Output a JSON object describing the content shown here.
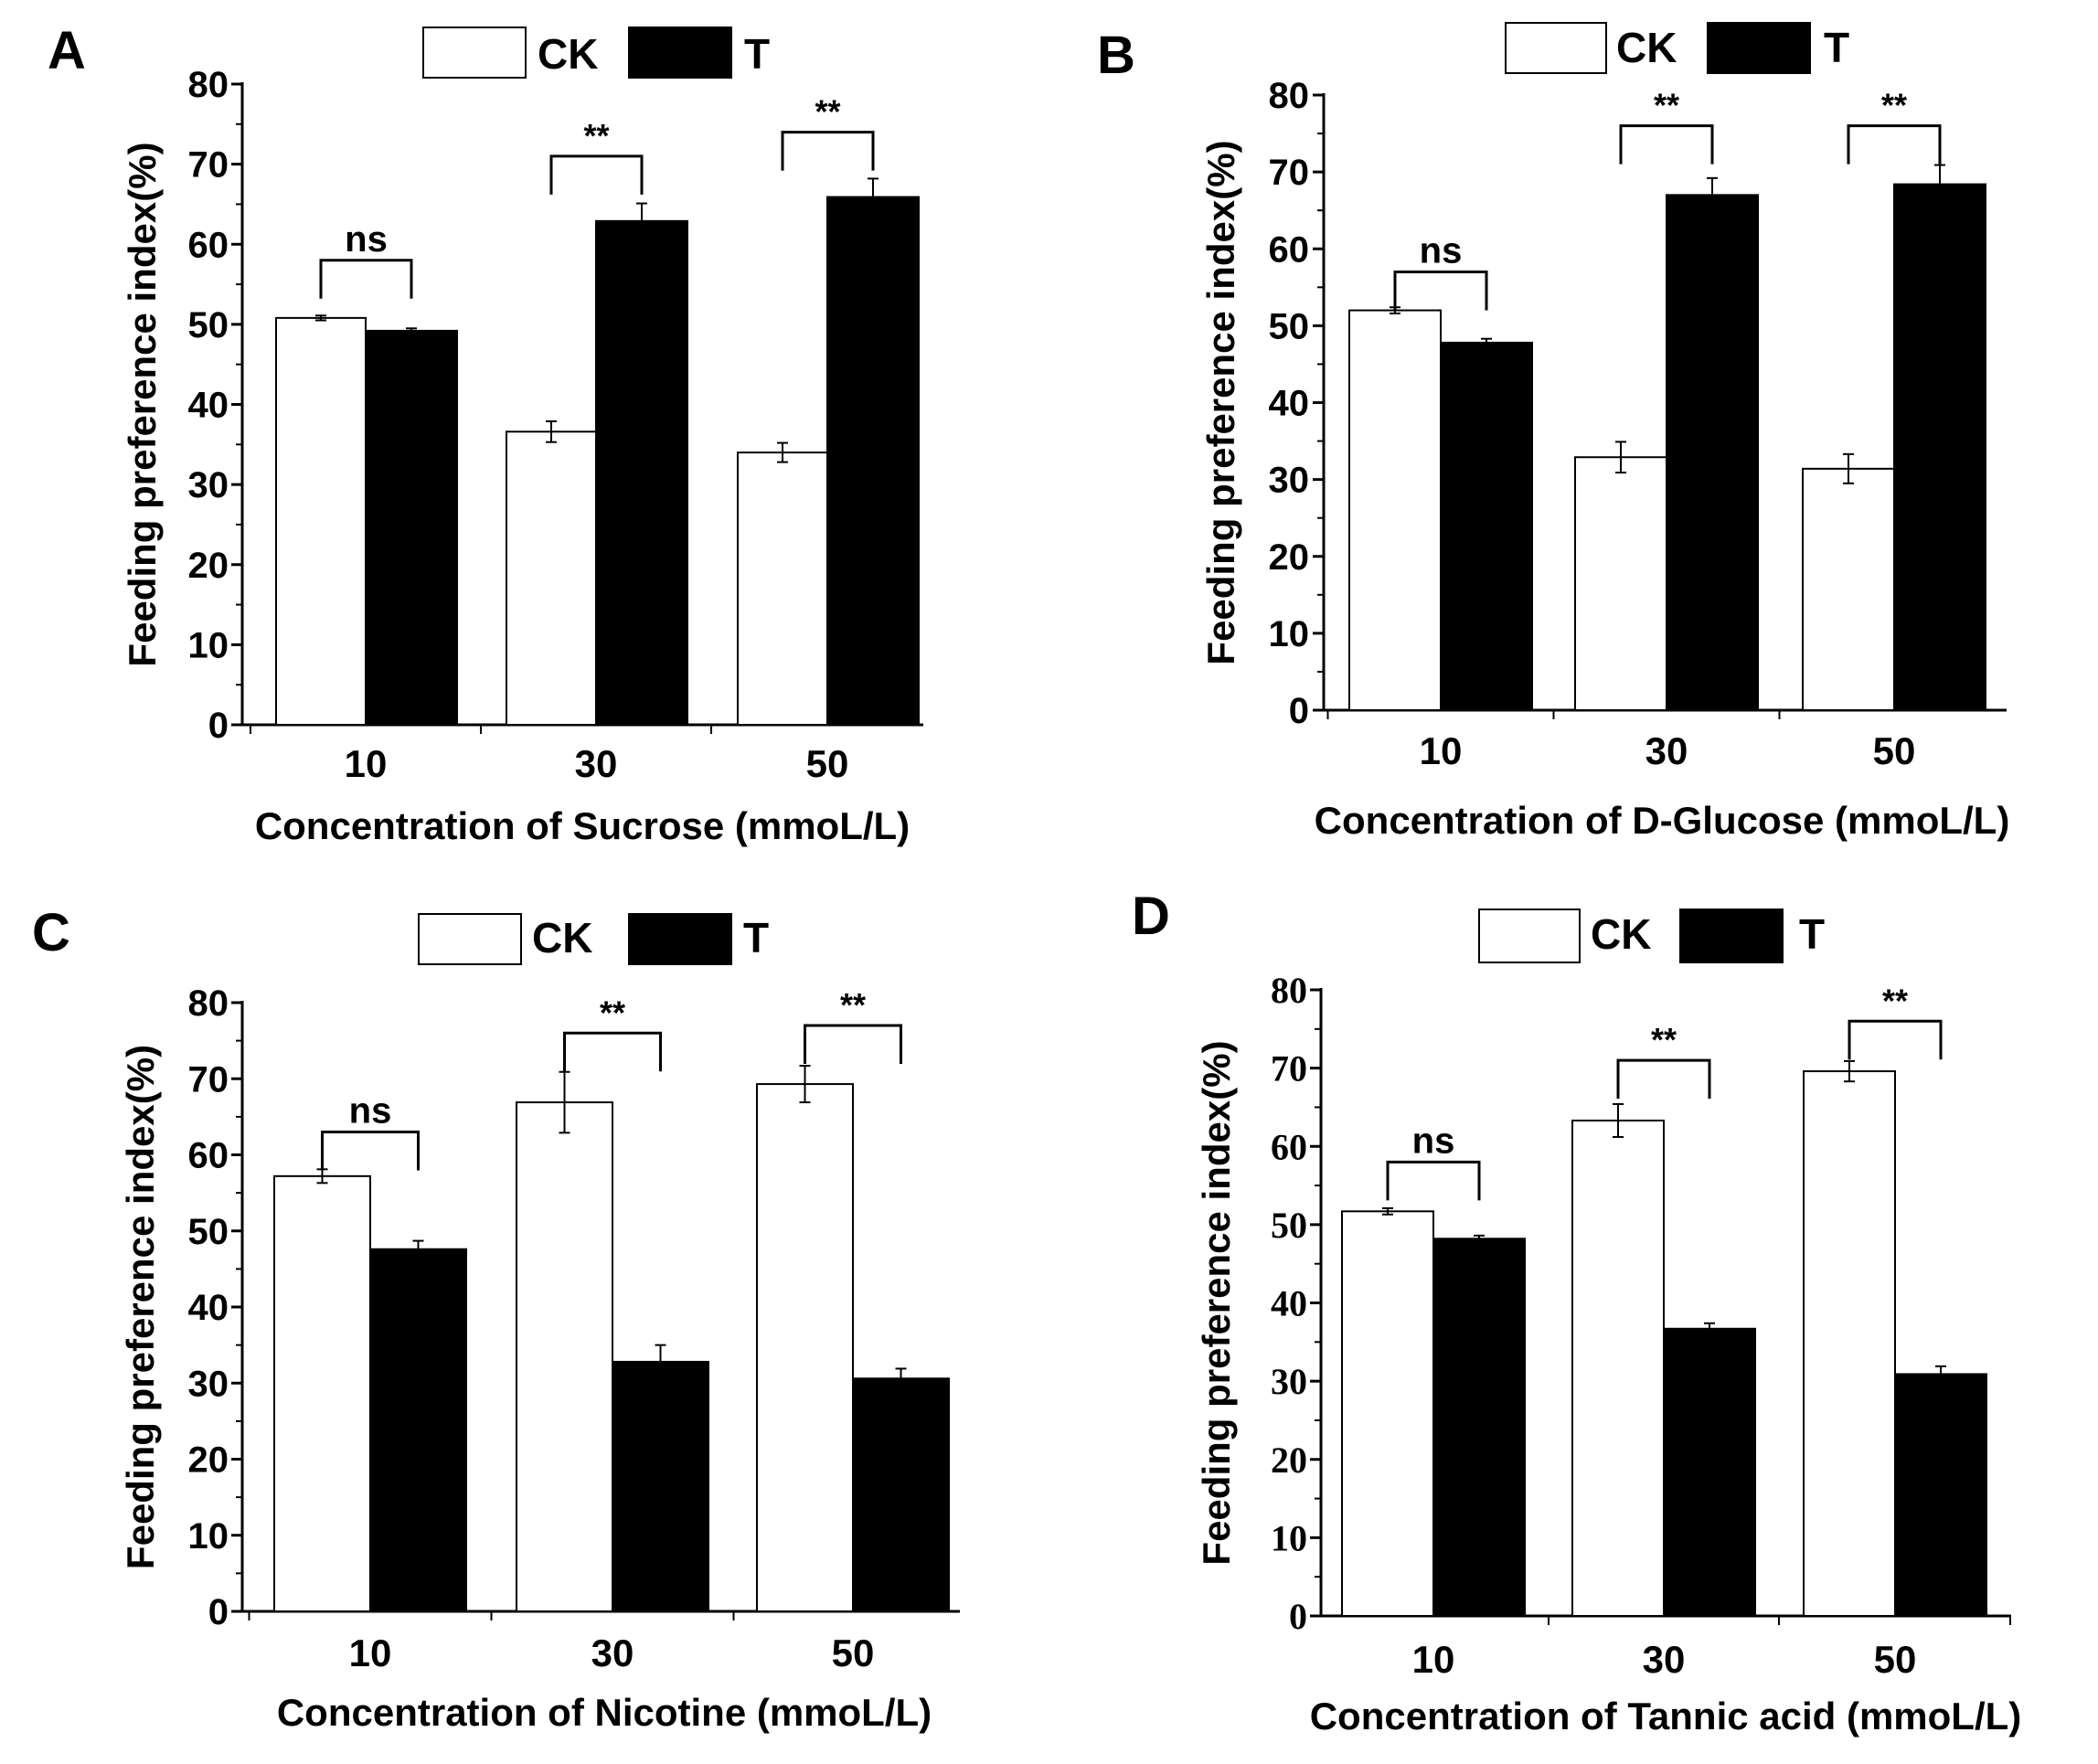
{
  "chart_data": [
    {
      "type": "bar",
      "panel_label": "A",
      "title": "",
      "xlabel": "Concentration of  Sucrose (mmoL/L)",
      "ylabel": "Feeding preference index(%)",
      "ylim": [
        0,
        80
      ],
      "yticks": [
        "0",
        "10",
        "20",
        "30",
        "40",
        "50",
        "60",
        "70",
        "80"
      ],
      "categories": [
        "10",
        "30",
        "50"
      ],
      "legend": [
        "CK",
        "T"
      ],
      "series": [
        {
          "name": "CK",
          "values": [
            50.8,
            36.6,
            34.0
          ],
          "errors": [
            0.3,
            1.3,
            1.2
          ]
        },
        {
          "name": "T",
          "values": [
            49.2,
            62.9,
            65.9
          ],
          "errors": [
            0.3,
            2.2,
            2.3
          ]
        }
      ],
      "significance": [
        "ns",
        "**",
        "**"
      ],
      "sig_heights": [
        58,
        71,
        74
      ]
    },
    {
      "type": "bar",
      "panel_label": "B",
      "title": "",
      "xlabel": "Concentration of  D-Glucose (mmoL/L)",
      "ylabel": "Feeding preference index(%)",
      "ylim": [
        0,
        80
      ],
      "yticks": [
        "0",
        "10",
        "20",
        "30",
        "40",
        "50",
        "60",
        "70",
        "80"
      ],
      "categories": [
        "10",
        "30",
        "50"
      ],
      "legend": [
        "CK",
        "T"
      ],
      "series": [
        {
          "name": "CK",
          "values": [
            52.0,
            32.9,
            31.4
          ],
          "errors": [
            0.4,
            2.0,
            1.9
          ]
        },
        {
          "name": "T",
          "values": [
            47.8,
            67.0,
            68.4
          ],
          "errors": [
            0.5,
            2.2,
            2.5
          ]
        }
      ],
      "significance": [
        "ns",
        "**",
        "**"
      ],
      "sig_heights": [
        57,
        76,
        76
      ]
    },
    {
      "type": "bar",
      "panel_label": "C",
      "title": "",
      "xlabel": "Concentration of Nicotine (mmoL/L)",
      "ylabel": "Feeding preference index(%)",
      "ylim": [
        0,
        80
      ],
      "yticks": [
        "0",
        "10",
        "20",
        "30",
        "40",
        "50",
        "60",
        "70",
        "80"
      ],
      "categories": [
        "10",
        "30",
        "50"
      ],
      "legend": [
        "CK",
        "T"
      ],
      "series": [
        {
          "name": "CK",
          "values": [
            57.2,
            66.9,
            69.3
          ],
          "errors": [
            0.9,
            4.0,
            2.4
          ]
        },
        {
          "name": "T",
          "values": [
            47.6,
            32.8,
            30.6
          ],
          "errors": [
            1.1,
            2.2,
            1.3
          ]
        }
      ],
      "significance": [
        "ns",
        "**",
        "**"
      ],
      "sig_heights": [
        63,
        76,
        77
      ]
    },
    {
      "type": "bar",
      "panel_label": "D",
      "title": "",
      "xlabel": "Concentration of Tannic acid (mmoL/L)",
      "ylabel": "Feeding preference index(%)",
      "ylim": [
        0,
        80
      ],
      "yticks": [
        "0",
        "10",
        "20",
        "30",
        "40",
        "50",
        "60",
        "70",
        "80"
      ],
      "categories": [
        "10",
        "30",
        "50"
      ],
      "legend": [
        "CK",
        "T"
      ],
      "series": [
        {
          "name": "CK",
          "values": [
            51.7,
            63.3,
            69.6
          ],
          "errors": [
            0.4,
            2.1,
            1.3
          ]
        },
        {
          "name": "T",
          "values": [
            48.2,
            36.7,
            30.9
          ],
          "errors": [
            0.4,
            0.7,
            1.0
          ]
        }
      ],
      "significance": [
        "ns",
        "**",
        "**"
      ],
      "sig_heights": [
        58,
        71,
        76
      ]
    }
  ]
}
